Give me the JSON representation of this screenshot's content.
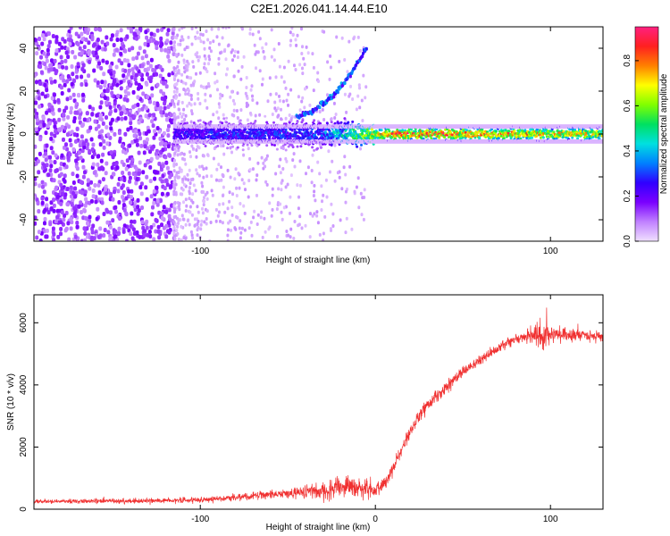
{
  "title": "C2E1.2026.041.14.44.E10",
  "chart_data": [
    {
      "type": "heatmap",
      "title": "C2E1.2026.041.14.44.E10",
      "xlabel": "Height of straight line (km)",
      "ylabel": "Frequency (Hz)",
      "xlim": [
        -195,
        130
      ],
      "ylim": [
        -50,
        50
      ],
      "xticks": [
        -100,
        0,
        100
      ],
      "xtick_labels": [
        "-100",
        "",
        "100"
      ],
      "yticks": [
        -40,
        -20,
        0,
        20,
        40
      ],
      "ytick_labels": [
        "-40",
        "-20",
        "0",
        "20",
        "40"
      ],
      "colorbar": {
        "label": "Normalized spectral amplitude",
        "range": [
          0,
          0.95
        ],
        "ticks": [
          0.0,
          0.2,
          0.4,
          0.6,
          0.8
        ],
        "tick_labels": [
          "0.0",
          "0.2",
          "0.4",
          "0.6",
          "0.8"
        ],
        "colors": [
          "#f0e0ff",
          "#c080ff",
          "#7a00ff",
          "#3000ff",
          "#0080ff",
          "#00e0e0",
          "#00e060",
          "#80ff00",
          "#ffff00",
          "#ff8000",
          "#ff2020",
          "#ff2080"
        ]
      },
      "features": {
        "noise_region_x": [
          -195,
          -115
        ],
        "noise_amplitude": 0.15,
        "band_center_hz": 0,
        "band_start_x": -115,
        "band_amplitude_profile": {
          "x": [
            -115,
            -90,
            -60,
            -30,
            -10,
            5,
            20,
            60,
            100,
            130
          ],
          "amplitude": [
            0.25,
            0.3,
            0.3,
            0.35,
            0.6,
            0.85,
            0.9,
            0.85,
            0.8,
            0.75
          ]
        },
        "chirp": {
          "x": [
            -45,
            -35,
            -25,
            -15,
            -5
          ],
          "frequency_hz": [
            8,
            11,
            17,
            27,
            40
          ]
        }
      }
    },
    {
      "type": "line",
      "xlabel": "Height of straight line (km)",
      "ylabel": "SNR (10 * v/v)",
      "xlim": [
        -195,
        130
      ],
      "ylim": [
        0,
        6900
      ],
      "xticks": [
        -100,
        0,
        100
      ],
      "xtick_labels": [
        "-100",
        "0",
        "100"
      ],
      "yticks": [
        0,
        2000,
        4000,
        6000
      ],
      "ytick_labels": [
        "0",
        "2000",
        "4000",
        "6000"
      ],
      "color": "#f03030",
      "series": [
        {
          "name": "SNR",
          "x": [
            -195,
            -150,
            -120,
            -100,
            -80,
            -60,
            -40,
            -25,
            -15,
            -10,
            0,
            5,
            10,
            15,
            20,
            25,
            30,
            40,
            50,
            60,
            70,
            80,
            90,
            95,
            100,
            110,
            120,
            130
          ],
          "values": [
            250,
            260,
            280,
            300,
            380,
            480,
            550,
            620,
            750,
            650,
            600,
            800,
            1300,
            1900,
            2500,
            3000,
            3400,
            3900,
            4400,
            4800,
            5200,
            5500,
            5600,
            5600,
            5650,
            5600,
            5600,
            5550
          ]
        }
      ],
      "noise_profile": {
        "x": [
          -195,
          -120,
          -80,
          -40,
          -20,
          -5,
          10,
          40,
          80,
          92,
          96,
          100,
          130
        ],
        "amplitude": [
          60,
          80,
          100,
          180,
          350,
          300,
          220,
          200,
          150,
          300,
          650,
          250,
          150
        ]
      }
    }
  ]
}
